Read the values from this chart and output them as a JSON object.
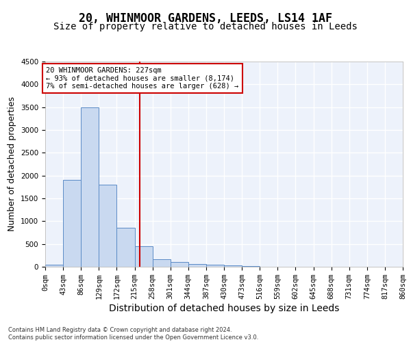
{
  "title": "20, WHINMOOR GARDENS, LEEDS, LS14 1AF",
  "subtitle": "Size of property relative to detached houses in Leeds",
  "xlabel": "Distribution of detached houses by size in Leeds",
  "ylabel": "Number of detached properties",
  "bar_color": "#c9d9f0",
  "bar_edge_color": "#5a8ac6",
  "bar_values": [
    50,
    1900,
    3500,
    1800,
    850,
    450,
    160,
    100,
    60,
    50,
    30,
    10,
    0,
    0,
    0,
    0,
    0,
    0,
    0,
    0
  ],
  "bin_edges": [
    0,
    43,
    86,
    129,
    172,
    215,
    258,
    301,
    344,
    387,
    430,
    473,
    516,
    559,
    602,
    645,
    688,
    731,
    774,
    817,
    860
  ],
  "tick_labels": [
    "0sqm",
    "43sqm",
    "86sqm",
    "129sqm",
    "172sqm",
    "215sqm",
    "258sqm",
    "301sqm",
    "344sqm",
    "387sqm",
    "430sqm",
    "473sqm",
    "516sqm",
    "559sqm",
    "602sqm",
    "645sqm",
    "688sqm",
    "731sqm",
    "774sqm",
    "817sqm",
    "860sqm"
  ],
  "ylim": [
    0,
    4500
  ],
  "yticks": [
    0,
    500,
    1000,
    1500,
    2000,
    2500,
    3000,
    3500,
    4000,
    4500
  ],
  "property_size": 227,
  "vline_color": "#cc0000",
  "annotation_text": "20 WHINMOOR GARDENS: 227sqm\n← 93% of detached houses are smaller (8,174)\n7% of semi-detached houses are larger (628) →",
  "annotation_box_color": "#cc0000",
  "footer_line1": "Contains HM Land Registry data © Crown copyright and database right 2024.",
  "footer_line2": "Contains public sector information licensed under the Open Government Licence v3.0.",
  "title_fontsize": 12,
  "subtitle_fontsize": 10,
  "xlabel_fontsize": 10,
  "ylabel_fontsize": 9,
  "tick_fontsize": 7.5,
  "ann_fontsize": 7.5,
  "footer_fontsize": 6,
  "background_color": "#edf2fb",
  "grid_color": "#ffffff"
}
